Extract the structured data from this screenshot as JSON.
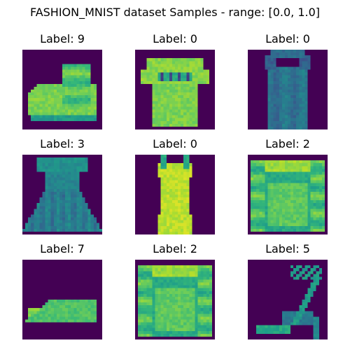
{
  "figure": {
    "title": "FASHION_MNIST dataset Samples - range: [0.0, 1.0]"
  },
  "colors": {
    "background": "#440154",
    "colormap": "viridis"
  },
  "samples": [
    {
      "label": "Label: 9",
      "item": "ankle-boot"
    },
    {
      "label": "Label: 0",
      "item": "t-shirt"
    },
    {
      "label": "Label: 0",
      "item": "tank-top"
    },
    {
      "label": "Label: 3",
      "item": "dress"
    },
    {
      "label": "Label: 0",
      "item": "top"
    },
    {
      "label": "Label: 2",
      "item": "pullover"
    },
    {
      "label": "Label: 7",
      "item": "sneaker"
    },
    {
      "label": "Label: 2",
      "item": "pullover"
    },
    {
      "label": "Label: 5",
      "item": "sandal"
    }
  ]
}
